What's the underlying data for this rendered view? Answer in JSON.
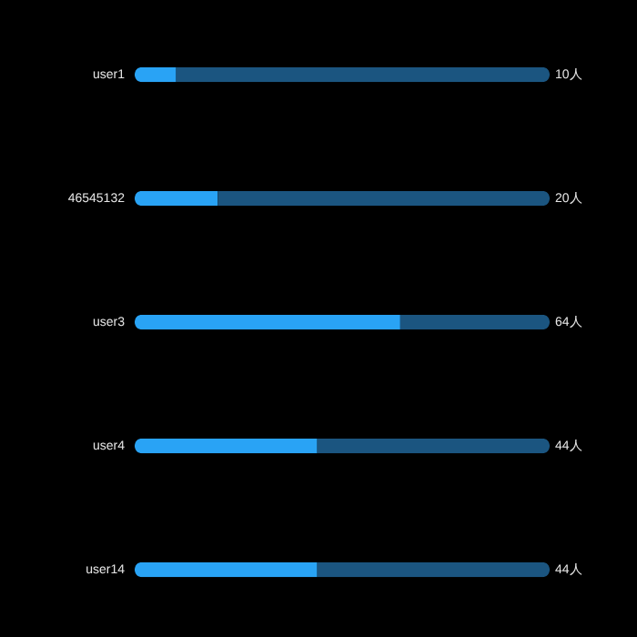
{
  "chart_data": {
    "type": "bar",
    "orientation": "horizontal",
    "stacked": true,
    "xlim": [
      0,
      100
    ],
    "tick_labels": "y",
    "categories": [
      "user1",
      "46545132",
      "user3",
      "user4",
      "user14"
    ],
    "series": [
      {
        "color": "#29a3f5",
        "values": [
          10,
          20,
          64,
          44,
          44
        ],
        "value_labels": [
          "10人",
          "20人",
          "64人",
          "44人",
          "44人"
        ]
      },
      {
        "color": "#1b5580",
        "values": [
          90,
          80,
          36,
          56,
          56
        ]
      }
    ]
  }
}
